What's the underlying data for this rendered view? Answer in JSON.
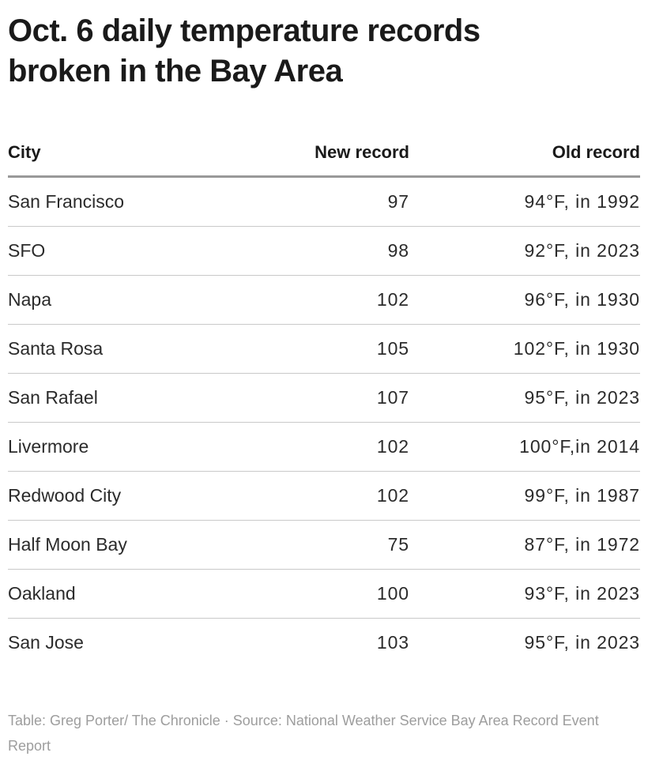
{
  "title": "Oct. 6 daily temperature records broken in the Bay Area",
  "table": {
    "columns": [
      "City",
      "New record",
      "Old record"
    ],
    "rows": [
      [
        "San Francisco",
        "97",
        "94°F, in 1992"
      ],
      [
        "SFO",
        "98",
        "92°F, in 2023"
      ],
      [
        "Napa",
        "102",
        "96°F, in 1930"
      ],
      [
        "Santa Rosa",
        "105",
        "102°F, in 1930"
      ],
      [
        "San Rafael",
        "107",
        "95°F, in 2023"
      ],
      [
        "Livermore",
        "102",
        "100°F,in 2014"
      ],
      [
        "Redwood City",
        "102",
        "99°F, in 1987"
      ],
      [
        "Half Moon Bay",
        "75",
        "87°F, in 1972"
      ],
      [
        "Oakland",
        "100",
        "93°F, in 2023"
      ],
      [
        "San Jose",
        "103",
        "95°F, in 2023"
      ]
    ]
  },
  "footer": "Table: Greg Porter/ The Chronicle · Source: National Weather Service Bay Area Record Event Report",
  "colors": {
    "title_text": "#1a1a1a",
    "body_text": "#2b2b2b",
    "header_rule": "#999999",
    "row_rule": "#c9c9c9",
    "footer_text": "#9d9d9d",
    "background": "#ffffff"
  },
  "chart_data": {
    "type": "table",
    "title": "Oct. 6 daily temperature records broken in the Bay Area",
    "columns": [
      "City",
      "New record",
      "Old record"
    ],
    "rows": [
      {
        "city": "San Francisco",
        "new_record_f": 97,
        "old_record": "94°F, in 1992",
        "old_record_f": 94,
        "old_record_year": 1992
      },
      {
        "city": "SFO",
        "new_record_f": 98,
        "old_record": "92°F, in 2023",
        "old_record_f": 92,
        "old_record_year": 2023
      },
      {
        "city": "Napa",
        "new_record_f": 102,
        "old_record": "96°F, in 1930",
        "old_record_f": 96,
        "old_record_year": 1930
      },
      {
        "city": "Santa Rosa",
        "new_record_f": 105,
        "old_record": "102°F, in 1930",
        "old_record_f": 102,
        "old_record_year": 1930
      },
      {
        "city": "San Rafael",
        "new_record_f": 107,
        "old_record": "95°F, in 2023",
        "old_record_f": 95,
        "old_record_year": 2023
      },
      {
        "city": "Livermore",
        "new_record_f": 102,
        "old_record": "100°F,in 2014",
        "old_record_f": 100,
        "old_record_year": 2014
      },
      {
        "city": "Redwood City",
        "new_record_f": 102,
        "old_record": "99°F, in 1987",
        "old_record_f": 99,
        "old_record_year": 1987
      },
      {
        "city": "Half Moon Bay",
        "new_record_f": 75,
        "old_record": "87°F, in 1972",
        "old_record_f": 87,
        "old_record_year": 1972
      },
      {
        "city": "Oakland",
        "new_record_f": 100,
        "old_record": "93°F, in 2023",
        "old_record_f": 93,
        "old_record_year": 2023
      },
      {
        "city": "San Jose",
        "new_record_f": 103,
        "old_record": "95°F, in 2023",
        "old_record_f": 95,
        "old_record_year": 2023
      }
    ],
    "source_note": "Table: Greg Porter/ The Chronicle · Source: National Weather Service Bay Area Record Event Report",
    "layout": {
      "grid": "horizontal row separators",
      "header_alignment": [
        "left",
        "right",
        "right"
      ]
    }
  }
}
